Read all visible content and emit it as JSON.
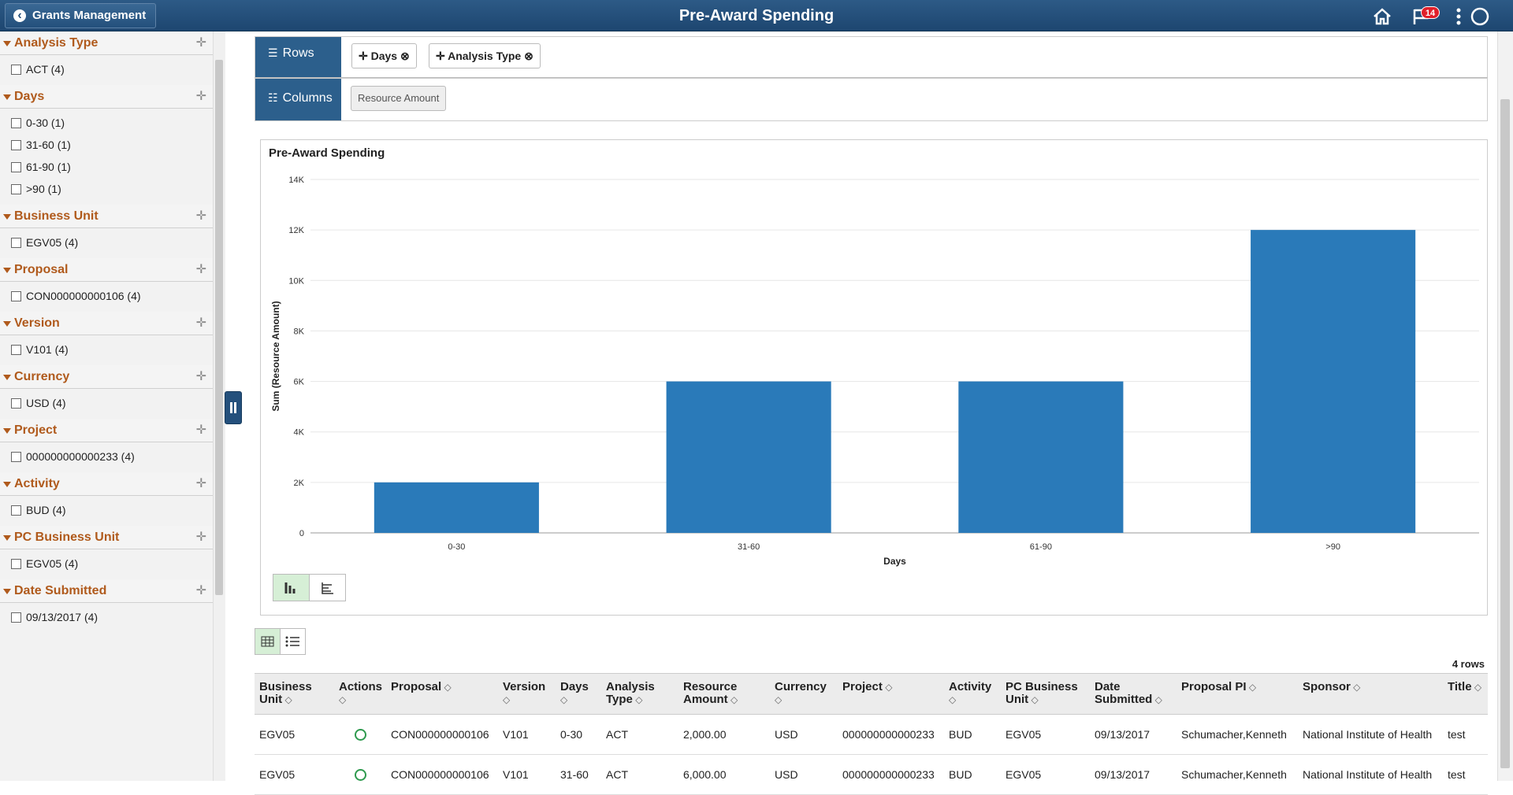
{
  "header": {
    "back": "Grants Management",
    "title": "Pre-Award Spending",
    "notifications": "14"
  },
  "facets": [
    {
      "name": "Analysis Type",
      "items": [
        "ACT (4)"
      ]
    },
    {
      "name": "Days",
      "items": [
        "0-30 (1)",
        "31-60 (1)",
        "61-90 (1)",
        ">90 (1)"
      ]
    },
    {
      "name": "Business Unit",
      "items": [
        "EGV05 (4)"
      ]
    },
    {
      "name": "Proposal",
      "items": [
        "CON000000000106 (4)"
      ]
    },
    {
      "name": "Version",
      "items": [
        "V101 (4)"
      ]
    },
    {
      "name": "Currency",
      "items": [
        "USD (4)"
      ]
    },
    {
      "name": "Project",
      "items": [
        "000000000000233 (4)"
      ]
    },
    {
      "name": "Activity",
      "items": [
        "BUD (4)"
      ]
    },
    {
      "name": "PC Business Unit",
      "items": [
        "EGV05 (4)"
      ]
    },
    {
      "name": "Date Submitted",
      "items": [
        "09/13/2017 (4)"
      ]
    }
  ],
  "pivot": {
    "rows_label": "Rows",
    "rows": [
      "Days",
      "Analysis Type"
    ],
    "columns_label": "Columns",
    "columns": [
      "Resource Amount"
    ]
  },
  "chart_data": {
    "type": "bar",
    "title": "Pre-Award Spending",
    "x_label": "Days",
    "y_label": "Sum (Resource Amount)",
    "categories": [
      "0-30",
      "31-60",
      "61-90",
      ">90"
    ],
    "values": [
      2000,
      6000,
      6000,
      12000
    ],
    "color": "#2a7ab9",
    "ylim": [
      0,
      14000
    ],
    "yticks": [
      0,
      {
        "value": 2000,
        "label": "2K"
      },
      {
        "value": 4000,
        "label": "4K"
      },
      {
        "value": 6000,
        "label": "6K"
      },
      {
        "value": 8000,
        "label": "8K"
      },
      {
        "value": 10000,
        "label": "10K"
      },
      {
        "value": 12000,
        "label": "12K"
      },
      {
        "value": 14000,
        "label": "14K"
      }
    ],
    "grid": true
  },
  "table": {
    "row_count": "4 rows",
    "columns": [
      "Business Unit",
      "Actions",
      "Proposal",
      "Version",
      "Days",
      "Analysis Type",
      "Resource Amount",
      "Currency",
      "Project",
      "Activity",
      "PC Business Unit",
      "Date Submitted",
      "Proposal PI",
      "Sponsor",
      "Title"
    ],
    "rows": [
      [
        "EGV05",
        "CON000000000106",
        "V101",
        "0-30",
        "ACT",
        "2,000.00",
        "USD",
        "000000000000233",
        "BUD",
        "EGV05",
        "09/13/2017",
        "Schumacher,Kenneth",
        "National Institute of Health",
        "test"
      ],
      [
        "EGV05",
        "CON000000000106",
        "V101",
        "31-60",
        "ACT",
        "6,000.00",
        "USD",
        "000000000000233",
        "BUD",
        "EGV05",
        "09/13/2017",
        "Schumacher,Kenneth",
        "National Institute of Health",
        "test"
      ]
    ]
  }
}
